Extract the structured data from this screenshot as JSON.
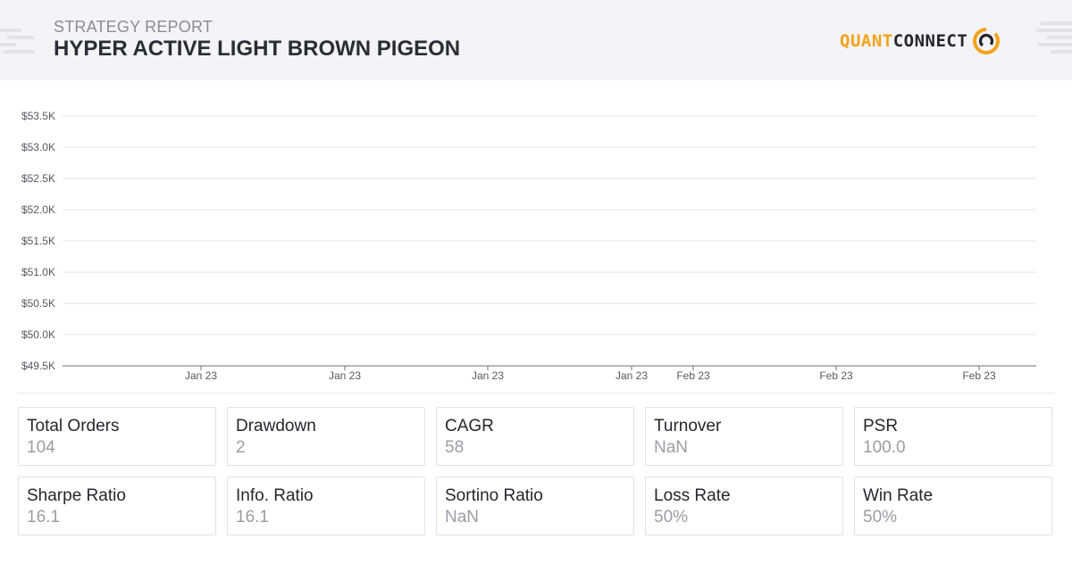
{
  "header": {
    "subtitle": "STRATEGY REPORT",
    "title": "HYPER ACTIVE LIGHT BROWN PIGEON",
    "logo": {
      "part1": "QUANT",
      "part2": "CONNECT",
      "icon": "quantconnect-logo-icon",
      "accent": "#f5a21c"
    }
  },
  "chart_data": {
    "type": "line",
    "title": "",
    "xlabel": "",
    "ylabel": "",
    "y_ticks": [
      "$53.5K",
      "$53.0K",
      "$52.5K",
      "$52.0K",
      "$51.5K",
      "$51.0K",
      "$50.5K",
      "$50.0K",
      "$49.5K"
    ],
    "y_values": [
      53500,
      53000,
      52500,
      52000,
      51500,
      51000,
      50500,
      50000,
      49500
    ],
    "ylim": [
      49500,
      53500
    ],
    "x_ticks": [
      "Jan 23",
      "Jan 23",
      "Jan 23",
      "Jan 23",
      "Feb 23",
      "Feb 23",
      "Feb 23"
    ],
    "series": [],
    "grid": true
  },
  "stats": [
    {
      "label": "Total Orders",
      "value": "104"
    },
    {
      "label": "Drawdown",
      "value": "2"
    },
    {
      "label": "CAGR",
      "value": "58"
    },
    {
      "label": "Turnover",
      "value": "NaN"
    },
    {
      "label": "PSR",
      "value": "100.0"
    },
    {
      "label": "Sharpe Ratio",
      "value": "16.1"
    },
    {
      "label": "Info. Ratio",
      "value": "16.1"
    },
    {
      "label": "Sortino Ratio",
      "value": "NaN"
    },
    {
      "label": "Loss Rate",
      "value": "50%"
    },
    {
      "label": "Win Rate",
      "value": "50%"
    }
  ]
}
